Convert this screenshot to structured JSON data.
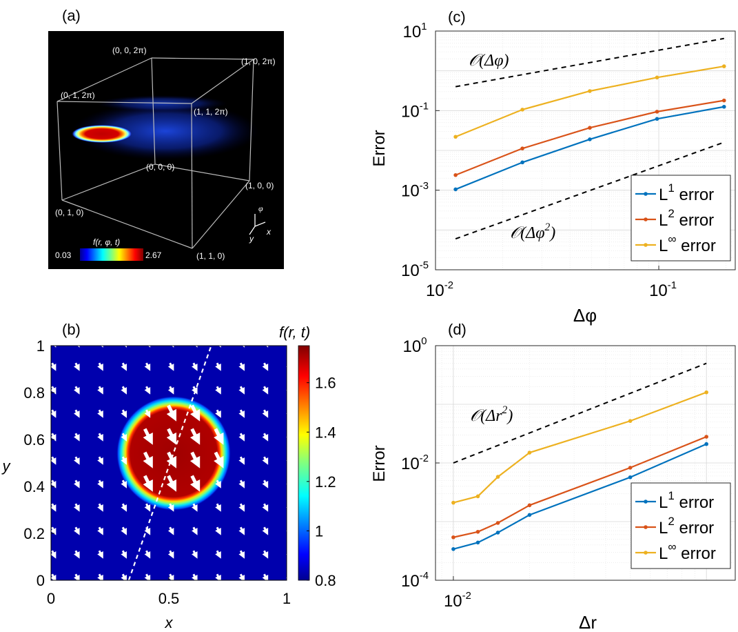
{
  "chart_data": [
    {
      "panel": "(a)",
      "type": "volume-render",
      "corner_labels": [
        "(0, 0, 2π)",
        "(1, 0, 2π)",
        "(0, 1, 2π)",
        "(1, 1, 2π)",
        "(0, 0, 0)",
        "(1, 0, 0)",
        "(0, 1, 0)",
        "(1, 1, 0)"
      ],
      "colorbar": {
        "label": "f(r, φ, t)",
        "min": "0.03",
        "max": "2.67"
      },
      "axes_triad": [
        "φ",
        "y",
        "x"
      ]
    },
    {
      "panel": "(b)",
      "type": "heatmap",
      "xlabel": "x",
      "ylabel": "y",
      "xlim": [
        0,
        1
      ],
      "ylim": [
        0,
        1
      ],
      "xticks": [
        "0",
        "0.5",
        "1"
      ],
      "yticks": [
        "0",
        "0.2",
        "0.4",
        "0.6",
        "0.8",
        "1"
      ],
      "colorbar": {
        "label": "f(r, t)",
        "range": [
          0.8,
          1.75
        ],
        "ticks": [
          "0.8",
          "1",
          "1.2",
          "1.4",
          "1.6"
        ]
      },
      "blob": {
        "center": [
          0.52,
          0.53
        ],
        "radius": 0.2,
        "peak": 1.75,
        "background": 0.8
      },
      "dashed_line": [
        [
          0.33,
          0
        ],
        [
          0.68,
          1
        ]
      ]
    },
    {
      "panel": "(c)",
      "type": "line",
      "xscale": "log",
      "yscale": "log",
      "xlabel": "Δφ",
      "ylabel": "Error",
      "xlim": [
        0.01,
        0.22
      ],
      "ylim": [
        1e-05,
        10
      ],
      "xticks": [
        "10",
        "10"
      ],
      "xtick_exps": [
        "-2",
        "-1"
      ],
      "xtick_values": [
        0.01,
        0.1
      ],
      "yticks": [
        "10",
        "10",
        "10",
        "10"
      ],
      "ytick_exps": [
        "-5",
        "-3",
        "-1",
        "1"
      ],
      "ytick_values": [
        1e-05,
        0.001,
        0.1,
        10
      ],
      "x": [
        0.0123,
        0.0245,
        0.0491,
        0.0982,
        0.196
      ],
      "series": [
        {
          "name": "L",
          "sup": "1",
          "suffix": " error",
          "color": "#0072BD",
          "values": [
            0.00105,
            0.005,
            0.019,
            0.062,
            0.125
          ]
        },
        {
          "name": "L",
          "sup": "2",
          "suffix": " error",
          "color": "#D95319",
          "values": [
            0.0024,
            0.0112,
            0.037,
            0.094,
            0.18
          ]
        },
        {
          "name": "L",
          "sup": "∞",
          "suffix": " error",
          "color": "#EDB120",
          "values": [
            0.022,
            0.106,
            0.31,
            0.68,
            1.3
          ]
        }
      ],
      "reference_lines": [
        {
          "label": "𝒪(Δφ)",
          "x": [
            0.0123,
            0.196
          ],
          "y": [
            0.4,
            6.5
          ]
        },
        {
          "label": "𝒪(Δφ",
          "label_sup": "2",
          "label_close": ")",
          "x": [
            0.0123,
            0.196
          ],
          "y": [
            6e-05,
            0.016
          ]
        }
      ],
      "legend": "bottom-right"
    },
    {
      "panel": "(d)",
      "type": "line",
      "xscale": "log",
      "yscale": "log",
      "xlabel": "Δr",
      "ylabel": "Error",
      "xlim": [
        0.0085,
        0.13
      ],
      "ylim": [
        0.0001,
        1
      ],
      "xticks": [
        "10"
      ],
      "xtick_exps": [
        "-2"
      ],
      "xtick_values": [
        0.01
      ],
      "yticks": [
        "10",
        "10",
        "10"
      ],
      "ytick_exps": [
        "-4",
        "-2",
        "0"
      ],
      "ytick_values": [
        0.0001,
        0.01,
        1
      ],
      "x": [
        0.01,
        0.0125,
        0.015,
        0.02,
        0.05,
        0.1
      ],
      "series": [
        {
          "name": "L",
          "sup": "1",
          "suffix": " error",
          "color": "#0072BD",
          "values": [
            0.00034,
            0.00044,
            0.00065,
            0.0013,
            0.0057,
            0.021
          ]
        },
        {
          "name": "L",
          "sup": "2",
          "suffix": " error",
          "color": "#D95319",
          "values": [
            0.00054,
            0.00067,
            0.00095,
            0.0019,
            0.0083,
            0.028
          ]
        },
        {
          "name": "L",
          "sup": "∞",
          "suffix": " error",
          "color": "#EDB120",
          "values": [
            0.0021,
            0.0027,
            0.0058,
            0.015,
            0.052,
            0.16
          ]
        }
      ],
      "reference_lines": [
        {
          "label": "𝒪(Δr",
          "label_sup": "2",
          "label_close": ")",
          "x": [
            0.01,
            0.1
          ],
          "y": [
            0.01,
            0.5
          ]
        }
      ],
      "legend": "bottom-right"
    }
  ]
}
